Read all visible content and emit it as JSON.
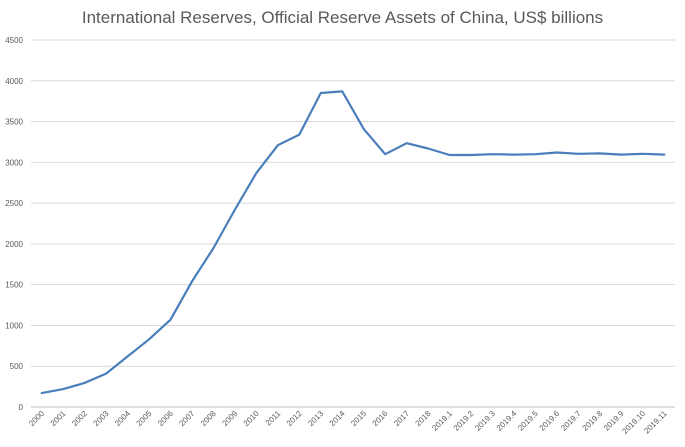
{
  "chart_data": {
    "type": "line",
    "title": "International Reserves, Official Reserve Assets of China, US$ billions",
    "xlabel": "",
    "ylabel": "",
    "ylim": [
      0,
      4500
    ],
    "yticks": [
      0,
      500,
      1000,
      1500,
      2000,
      2500,
      3000,
      3500,
      4000,
      4500
    ],
    "grid": true,
    "legend": "none",
    "series_color": "#4a7ebb",
    "categories": [
      "2000",
      "2001",
      "2002",
      "2003",
      "2004",
      "2005",
      "2006",
      "2007",
      "2008",
      "2009",
      "2010",
      "2011",
      "2012",
      "2013",
      "2014",
      "2015",
      "2016",
      "2017",
      "2018",
      "2019.1",
      "2019.2",
      "2019.3",
      "2019.4",
      "2019.5",
      "2019.6",
      "2019.7",
      "2019.8",
      "2019.9",
      "2019.10",
      "2019.11"
    ],
    "series": [
      {
        "values": [
          170,
          220,
          295,
          410,
          620,
          830,
          1070,
          1540,
          1950,
          2420,
          2870,
          3210,
          3340,
          3850,
          3870,
          3410,
          3100,
          3235,
          3170,
          3090,
          3090,
          3100,
          3095,
          3100,
          3120,
          3105,
          3110,
          3095,
          3105,
          3095
        ]
      }
    ]
  }
}
